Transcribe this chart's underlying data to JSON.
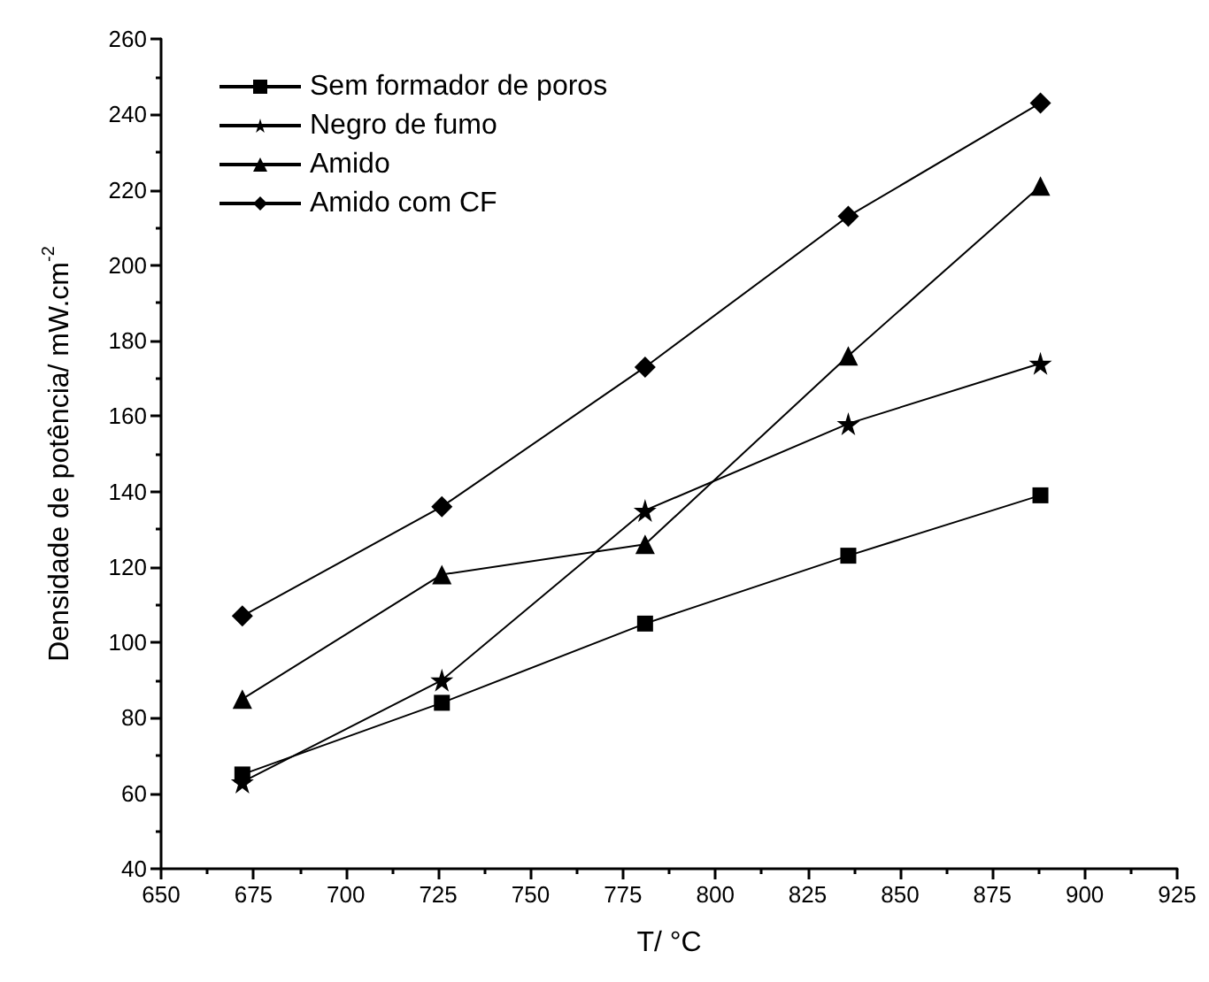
{
  "chart_data": {
    "type": "line",
    "xlabel": "T/ °C",
    "ylabel": "Densidade de potência/ mW.cm$^{-2}$",
    "x": [
      672,
      726,
      781,
      836,
      888
    ],
    "series": [
      {
        "name": "Sem formador de poros",
        "color": "#000000",
        "marker": "square",
        "values": [
          65,
          84,
          105,
          123,
          139
        ]
      },
      {
        "name": "Negro de fumo",
        "color": "#000000",
        "marker": "star",
        "values": [
          63,
          90,
          135,
          158,
          174
        ]
      },
      {
        "name": "Amido",
        "color": "#000000",
        "marker": "triangle",
        "values": [
          85,
          118,
          126,
          176,
          221
        ]
      },
      {
        "name": "Amido com CF",
        "color": "#000000",
        "marker": "diamond",
        "values": [
          107,
          136,
          173,
          213,
          243
        ]
      }
    ],
    "xlim": [
      650,
      925
    ],
    "xticks": [
      650,
      675,
      700,
      725,
      750,
      775,
      800,
      825,
      850,
      875,
      900,
      925
    ],
    "ylim": [
      40,
      260
    ],
    "yticks": [
      40,
      60,
      80,
      100,
      120,
      140,
      160,
      180,
      200,
      220,
      240,
      260
    ],
    "grid": false,
    "legend": "top left",
    "line_style": "solid"
  }
}
